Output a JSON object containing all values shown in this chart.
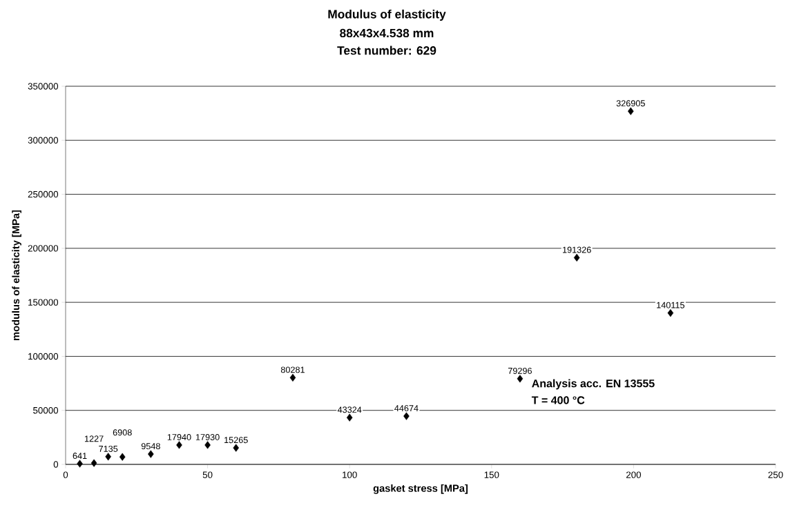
{
  "chart_data": {
    "type": "scatter",
    "title": "Modulus  of elasticity",
    "subtitle": "88x43x4.538  mm",
    "xlabel": "gasket stress [MPa]",
    "ylabel": "modulus  of elasticity [MPa]",
    "annotations": [
      "Test number:  629",
      "Analysis acc. EN 13555",
      "T = 400 °C"
    ],
    "x": [
      5,
      10,
      15,
      20,
      30,
      40,
      50,
      60,
      80,
      100,
      120,
      160,
      180,
      199,
      213
    ],
    "values": [
      641,
      1227,
      7135,
      6908,
      9548,
      17940,
      17930,
      15265,
      80281,
      43324,
      44674,
      79296,
      191326,
      326905,
      140115
    ],
    "color": "#000000",
    "marker": "diamond",
    "data_labels": true,
    "grid": "y",
    "xlim": [
      0,
      250
    ],
    "xticks": [
      0,
      50,
      100,
      150,
      200,
      250
    ],
    "ylim": [
      0,
      350000
    ],
    "yticks": [
      0,
      50000,
      100000,
      150000,
      200000,
      250000,
      300000,
      350000
    ]
  }
}
